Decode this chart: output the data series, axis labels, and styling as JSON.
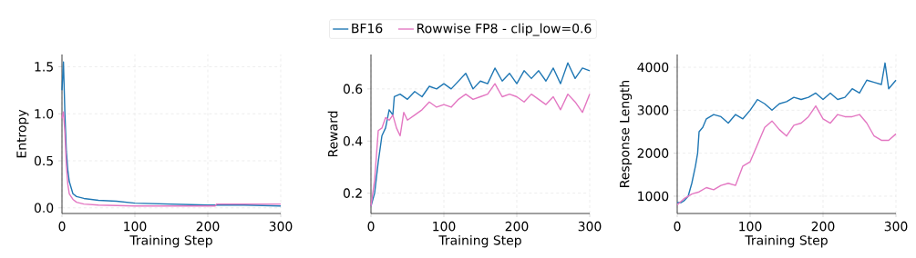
{
  "chart_data": [
    {
      "type": "line",
      "xlabel": "Training Step",
      "ylabel": "Entropy",
      "xlim": [
        0,
        300
      ],
      "ylim": [
        -0.06,
        1.63
      ],
      "xticks": [
        0,
        100,
        200,
        300
      ],
      "yticks": [
        {
          "value": 0,
          "label": "0.0"
        },
        {
          "value": 0.5,
          "label": "0.5"
        },
        {
          "value": 1,
          "label": "1.0"
        },
        {
          "value": 1.5,
          "label": "1.5"
        }
      ],
      "grid": true,
      "legend": "top",
      "line_style": "solid",
      "series": [
        {
          "name": "BF16",
          "color": "#1f77b4",
          "x": [
            0,
            2,
            4,
            6,
            8,
            10,
            15,
            20,
            30,
            50,
            75,
            100,
            150,
            200,
            250,
            300
          ],
          "values": [
            1.25,
            1.55,
            1.0,
            0.6,
            0.4,
            0.28,
            0.15,
            0.12,
            0.1,
            0.08,
            0.07,
            0.05,
            0.04,
            0.03,
            0.03,
            0.02
          ]
        },
        {
          "name": "Rowwise FP8 - clip_low=0.6",
          "color": "#e377c2",
          "x": [
            0,
            2,
            4,
            6,
            8,
            10,
            15,
            20,
            30,
            50,
            100,
            150,
            210,
            212,
            250,
            300
          ],
          "values": [
            0.95,
            1.02,
            0.8,
            0.45,
            0.25,
            0.15,
            0.09,
            0.06,
            0.04,
            0.03,
            0.02,
            0.02,
            0.02,
            0.04,
            0.04,
            0.04
          ]
        }
      ]
    },
    {
      "type": "line",
      "xlabel": "Training Step",
      "ylabel": "Reward",
      "xlim": [
        0,
        300
      ],
      "ylim": [
        0.122,
        0.732
      ],
      "xticks": [
        0,
        100,
        200,
        300
      ],
      "yticks": [
        0.2,
        0.4,
        0.6
      ],
      "grid": true,
      "line_style": "solid",
      "series": [
        {
          "color": "#1f77b4",
          "x": [
            0,
            5,
            10,
            15,
            20,
            25,
            30,
            32,
            40,
            50,
            60,
            70,
            80,
            90,
            100,
            110,
            120,
            130,
            140,
            150,
            160,
            170,
            180,
            190,
            200,
            210,
            220,
            230,
            240,
            250,
            260,
            270,
            280,
            290,
            300
          ],
          "values": [
            0.15,
            0.2,
            0.32,
            0.42,
            0.45,
            0.52,
            0.5,
            0.57,
            0.58,
            0.56,
            0.59,
            0.57,
            0.61,
            0.6,
            0.62,
            0.6,
            0.63,
            0.66,
            0.6,
            0.63,
            0.62,
            0.68,
            0.63,
            0.66,
            0.62,
            0.67,
            0.64,
            0.67,
            0.63,
            0.68,
            0.62,
            0.7,
            0.64,
            0.68,
            0.67
          ]
        },
        {
          "color": "#e377c2",
          "x": [
            0,
            5,
            10,
            15,
            20,
            25,
            30,
            35,
            40,
            45,
            50,
            60,
            70,
            80,
            90,
            100,
            110,
            120,
            130,
            140,
            150,
            160,
            170,
            180,
            190,
            200,
            210,
            220,
            230,
            240,
            250,
            260,
            270,
            280,
            290,
            300
          ],
          "values": [
            0.15,
            0.25,
            0.44,
            0.45,
            0.49,
            0.48,
            0.5,
            0.45,
            0.42,
            0.51,
            0.48,
            0.5,
            0.52,
            0.55,
            0.53,
            0.54,
            0.53,
            0.56,
            0.58,
            0.56,
            0.57,
            0.58,
            0.62,
            0.57,
            0.58,
            0.57,
            0.55,
            0.58,
            0.56,
            0.54,
            0.57,
            0.52,
            0.58,
            0.55,
            0.51,
            0.58
          ]
        }
      ]
    },
    {
      "type": "line",
      "xlabel": "Training Step",
      "ylabel": "Response Length",
      "xlim": [
        0,
        300
      ],
      "ylim": [
        597,
        4297
      ],
      "xticks": [
        0,
        100,
        200,
        300
      ],
      "yticks": [
        1000,
        2000,
        3000,
        4000
      ],
      "grid": true,
      "line_style": "solid",
      "series": [
        {
          "color": "#1f77b4",
          "x": [
            0,
            5,
            10,
            15,
            20,
            25,
            28,
            30,
            35,
            40,
            50,
            60,
            70,
            80,
            90,
            100,
            110,
            120,
            130,
            140,
            150,
            160,
            170,
            180,
            190,
            200,
            210,
            220,
            230,
            240,
            250,
            260,
            270,
            280,
            285,
            290,
            300
          ],
          "values": [
            850,
            850,
            900,
            1000,
            1300,
            1700,
            2000,
            2500,
            2600,
            2800,
            2900,
            2850,
            2700,
            2900,
            2800,
            3000,
            3250,
            3150,
            3000,
            3150,
            3200,
            3300,
            3250,
            3300,
            3400,
            3250,
            3400,
            3250,
            3300,
            3500,
            3400,
            3700,
            3650,
            3600,
            4100,
            3500,
            3700
          ]
        },
        {
          "color": "#e377c2",
          "x": [
            0,
            10,
            20,
            30,
            40,
            50,
            60,
            70,
            80,
            90,
            100,
            110,
            120,
            130,
            140,
            150,
            160,
            170,
            180,
            190,
            200,
            210,
            220,
            230,
            240,
            250,
            260,
            270,
            280,
            290,
            300
          ],
          "values": [
            800,
            950,
            1050,
            1100,
            1200,
            1150,
            1250,
            1300,
            1250,
            1700,
            1800,
            2200,
            2600,
            2750,
            2550,
            2400,
            2650,
            2700,
            2850,
            3100,
            2800,
            2700,
            2900,
            2850,
            2850,
            2900,
            2700,
            2400,
            2300,
            2300,
            2450
          ]
        }
      ]
    }
  ]
}
